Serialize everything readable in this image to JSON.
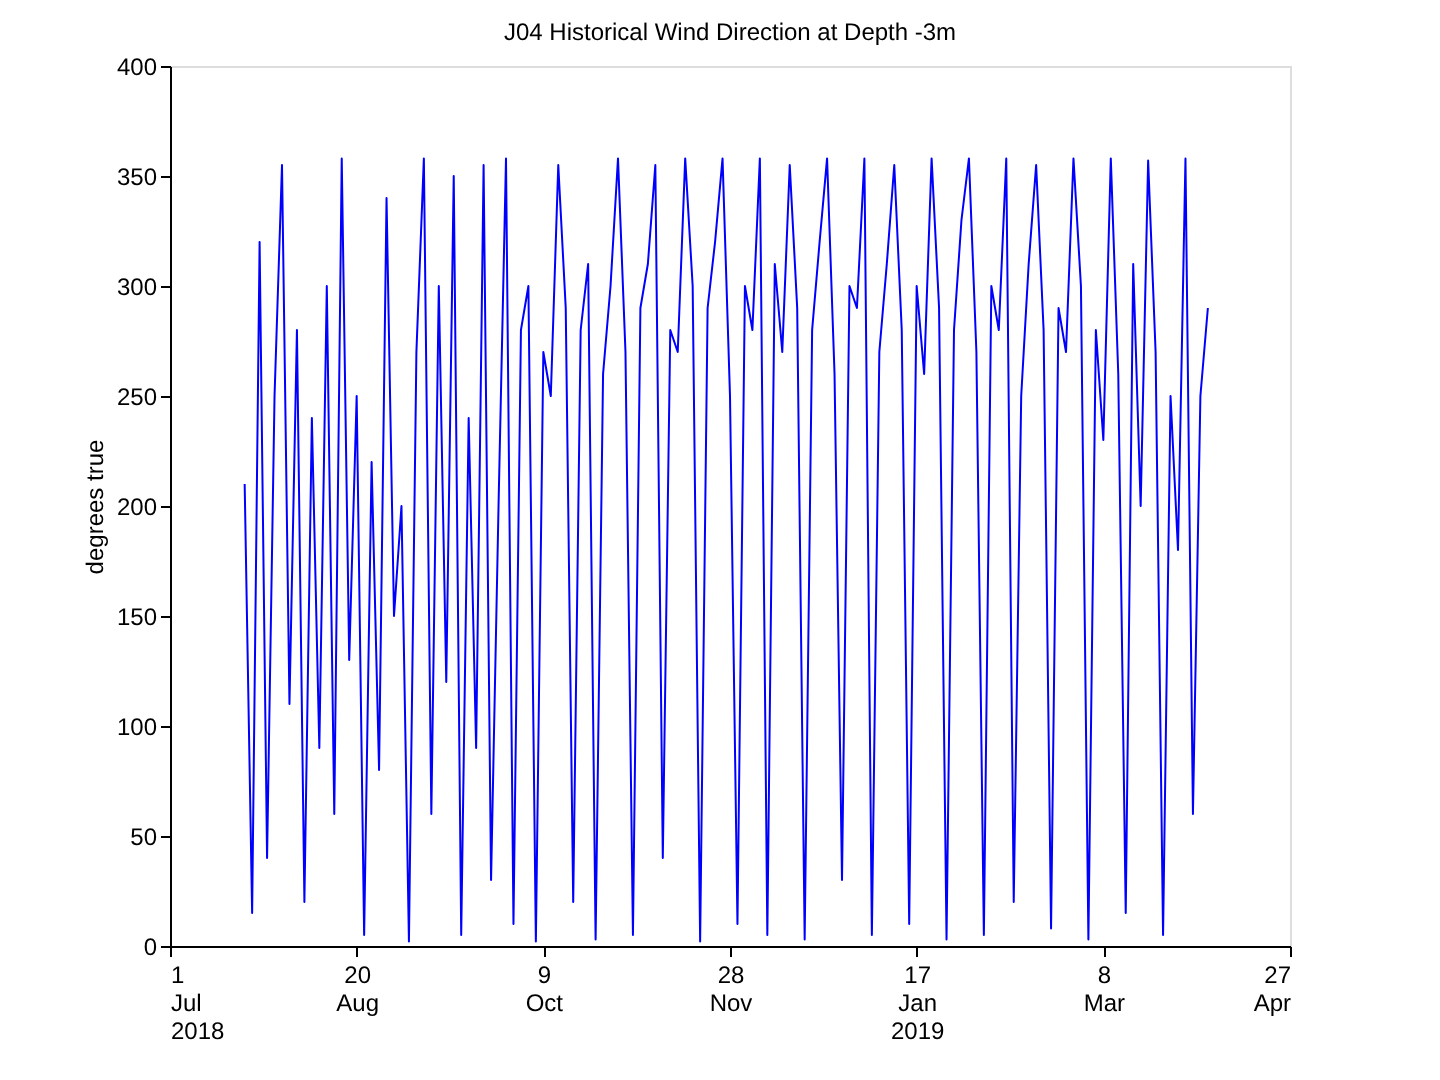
{
  "chart_data": {
    "type": "line",
    "title": "J04 Historical Wind Direction at Depth -3m",
    "ylabel": "degrees true",
    "xlim": [
      "2018-07-01",
      "2019-04-27"
    ],
    "xticks": [
      {
        "value": "2018-07-01",
        "label": "1 Jul 2018"
      },
      {
        "value": "2018-08-20",
        "label": "20 Aug"
      },
      {
        "value": "2018-10-09",
        "label": "9 Oct"
      },
      {
        "value": "2018-11-28",
        "label": "28 Nov"
      },
      {
        "value": "2019-01-17",
        "label": "17 Jan 2019"
      },
      {
        "value": "2019-03-08",
        "label": "8 Mar"
      },
      {
        "value": "2019-04-27",
        "label": "27 Apr"
      }
    ],
    "ylim": [
      0,
      400
    ],
    "yticks": [
      0,
      50,
      100,
      150,
      200,
      250,
      300,
      350,
      400
    ],
    "grid": false,
    "marker": "none",
    "line_style": "solid",
    "x": [
      "2018-07-21",
      "2018-07-23",
      "2018-07-25",
      "2018-07-27",
      "2018-07-29",
      "2018-07-31",
      "2018-08-02",
      "2018-08-04",
      "2018-08-06",
      "2018-08-08",
      "2018-08-10",
      "2018-08-12",
      "2018-08-14",
      "2018-08-16",
      "2018-08-18",
      "2018-08-20",
      "2018-08-22",
      "2018-08-24",
      "2018-08-26",
      "2018-08-28",
      "2018-08-30",
      "2018-09-01",
      "2018-09-03",
      "2018-09-05",
      "2018-09-07",
      "2018-09-09",
      "2018-09-11",
      "2018-09-13",
      "2018-09-15",
      "2018-09-17",
      "2018-09-19",
      "2018-09-21",
      "2018-09-23",
      "2018-09-25",
      "2018-09-27",
      "2018-09-29",
      "2018-10-01",
      "2018-10-03",
      "2018-10-05",
      "2018-10-07",
      "2018-10-09",
      "2018-10-11",
      "2018-10-13",
      "2018-10-15",
      "2018-10-17",
      "2018-10-19",
      "2018-10-21",
      "2018-10-23",
      "2018-10-25",
      "2018-10-27",
      "2018-10-29",
      "2018-10-31",
      "2018-11-02",
      "2018-11-04",
      "2018-11-06",
      "2018-11-08",
      "2018-11-10",
      "2018-11-12",
      "2018-11-14",
      "2018-11-16",
      "2018-11-18",
      "2018-11-20",
      "2018-11-22",
      "2018-11-24",
      "2018-11-26",
      "2018-11-28",
      "2018-11-30",
      "2018-12-02",
      "2018-12-04",
      "2018-12-06",
      "2018-12-08",
      "2018-12-10",
      "2018-12-12",
      "2018-12-14",
      "2018-12-16",
      "2018-12-18",
      "2018-12-20",
      "2018-12-22",
      "2018-12-24",
      "2018-12-26",
      "2018-12-28",
      "2018-12-30",
      "2019-01-01",
      "2019-01-03",
      "2019-01-05",
      "2019-01-07",
      "2019-01-09",
      "2019-01-11",
      "2019-01-13",
      "2019-01-15",
      "2019-01-17",
      "2019-01-19",
      "2019-01-21",
      "2019-01-23",
      "2019-01-25",
      "2019-01-27",
      "2019-01-29",
      "2019-01-31",
      "2019-02-02",
      "2019-02-04",
      "2019-02-06",
      "2019-02-08",
      "2019-02-10",
      "2019-02-12",
      "2019-02-14",
      "2019-02-16",
      "2019-02-18",
      "2019-02-20",
      "2019-02-22",
      "2019-02-24",
      "2019-02-26",
      "2019-02-28",
      "2019-03-02",
      "2019-03-04",
      "2019-03-06",
      "2019-03-08",
      "2019-03-10",
      "2019-03-12",
      "2019-03-14",
      "2019-03-16",
      "2019-03-18",
      "2019-03-20",
      "2019-03-22",
      "2019-03-24",
      "2019-03-26",
      "2019-03-28",
      "2019-03-30",
      "2019-04-01",
      "2019-04-03",
      "2019-04-05"
    ],
    "series": [
      {
        "color": "#0000ff",
        "values": [
          210,
          15,
          320,
          40,
          250,
          355,
          110,
          280,
          20,
          240,
          90,
          300,
          60,
          358,
          130,
          250,
          5,
          220,
          80,
          340,
          150,
          200,
          2,
          270,
          358,
          60,
          300,
          120,
          350,
          5,
          240,
          90,
          355,
          30,
          200,
          358,
          10,
          280,
          300,
          2,
          270,
          250,
          355,
          290,
          20,
          280,
          310,
          3,
          260,
          300,
          358,
          270,
          5,
          290,
          310,
          355,
          40,
          280,
          270,
          358,
          300,
          2,
          290,
          320,
          358,
          250,
          10,
          300,
          280,
          358,
          5,
          310,
          270,
          355,
          290,
          3,
          280,
          320,
          358,
          260,
          30,
          300,
          290,
          358,
          5,
          270,
          310,
          355,
          280,
          10,
          300,
          260,
          358,
          290,
          3,
          280,
          330,
          358,
          270,
          5,
          300,
          280,
          358,
          20,
          250,
          310,
          355,
          280,
          8,
          290,
          270,
          358,
          300,
          3,
          280,
          230,
          358,
          260,
          15,
          310,
          200,
          357,
          270,
          5,
          250,
          180,
          358,
          60,
          250,
          290
        ]
      }
    ]
  }
}
